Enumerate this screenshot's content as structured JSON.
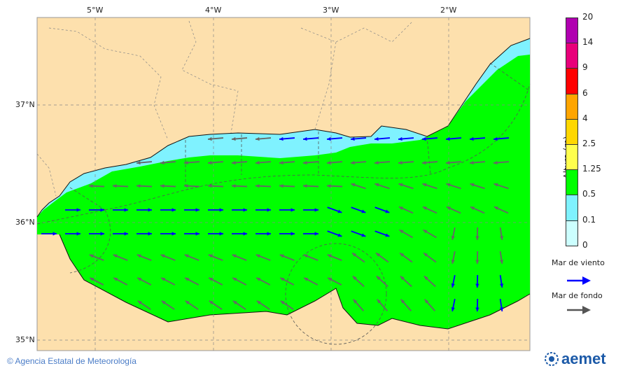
{
  "map": {
    "lon_labels": [
      "5°W",
      "4°W",
      "3°W",
      "2°W"
    ],
    "lat_labels": [
      "37°N",
      "36°N",
      "35°N"
    ],
    "colors": {
      "land": "#fde0ad",
      "sea_green": "#00ff00",
      "sea_cyan": "#7ff2ff",
      "wind_arrow": "#0000ff",
      "swell_arrow": "#666666"
    }
  },
  "colorbar": {
    "title": "Altura (m)",
    "ticks": [
      "20",
      "14",
      "9",
      "6",
      "4",
      "2.5",
      "1.25",
      "0.5",
      "0.1",
      "0"
    ],
    "colors": [
      "#b000b0",
      "#e8007a",
      "#ff0000",
      "#ffa500",
      "#ffd700",
      "#ffff4d",
      "#00ff00",
      "#7ff2ff",
      "#ccffff"
    ]
  },
  "legend": {
    "wind_sea": "Mar de viento",
    "swell": "Mar de fondo"
  },
  "footer": {
    "copyright": "© Agencia Estatal de Meteorología",
    "logo": "aemet"
  }
}
